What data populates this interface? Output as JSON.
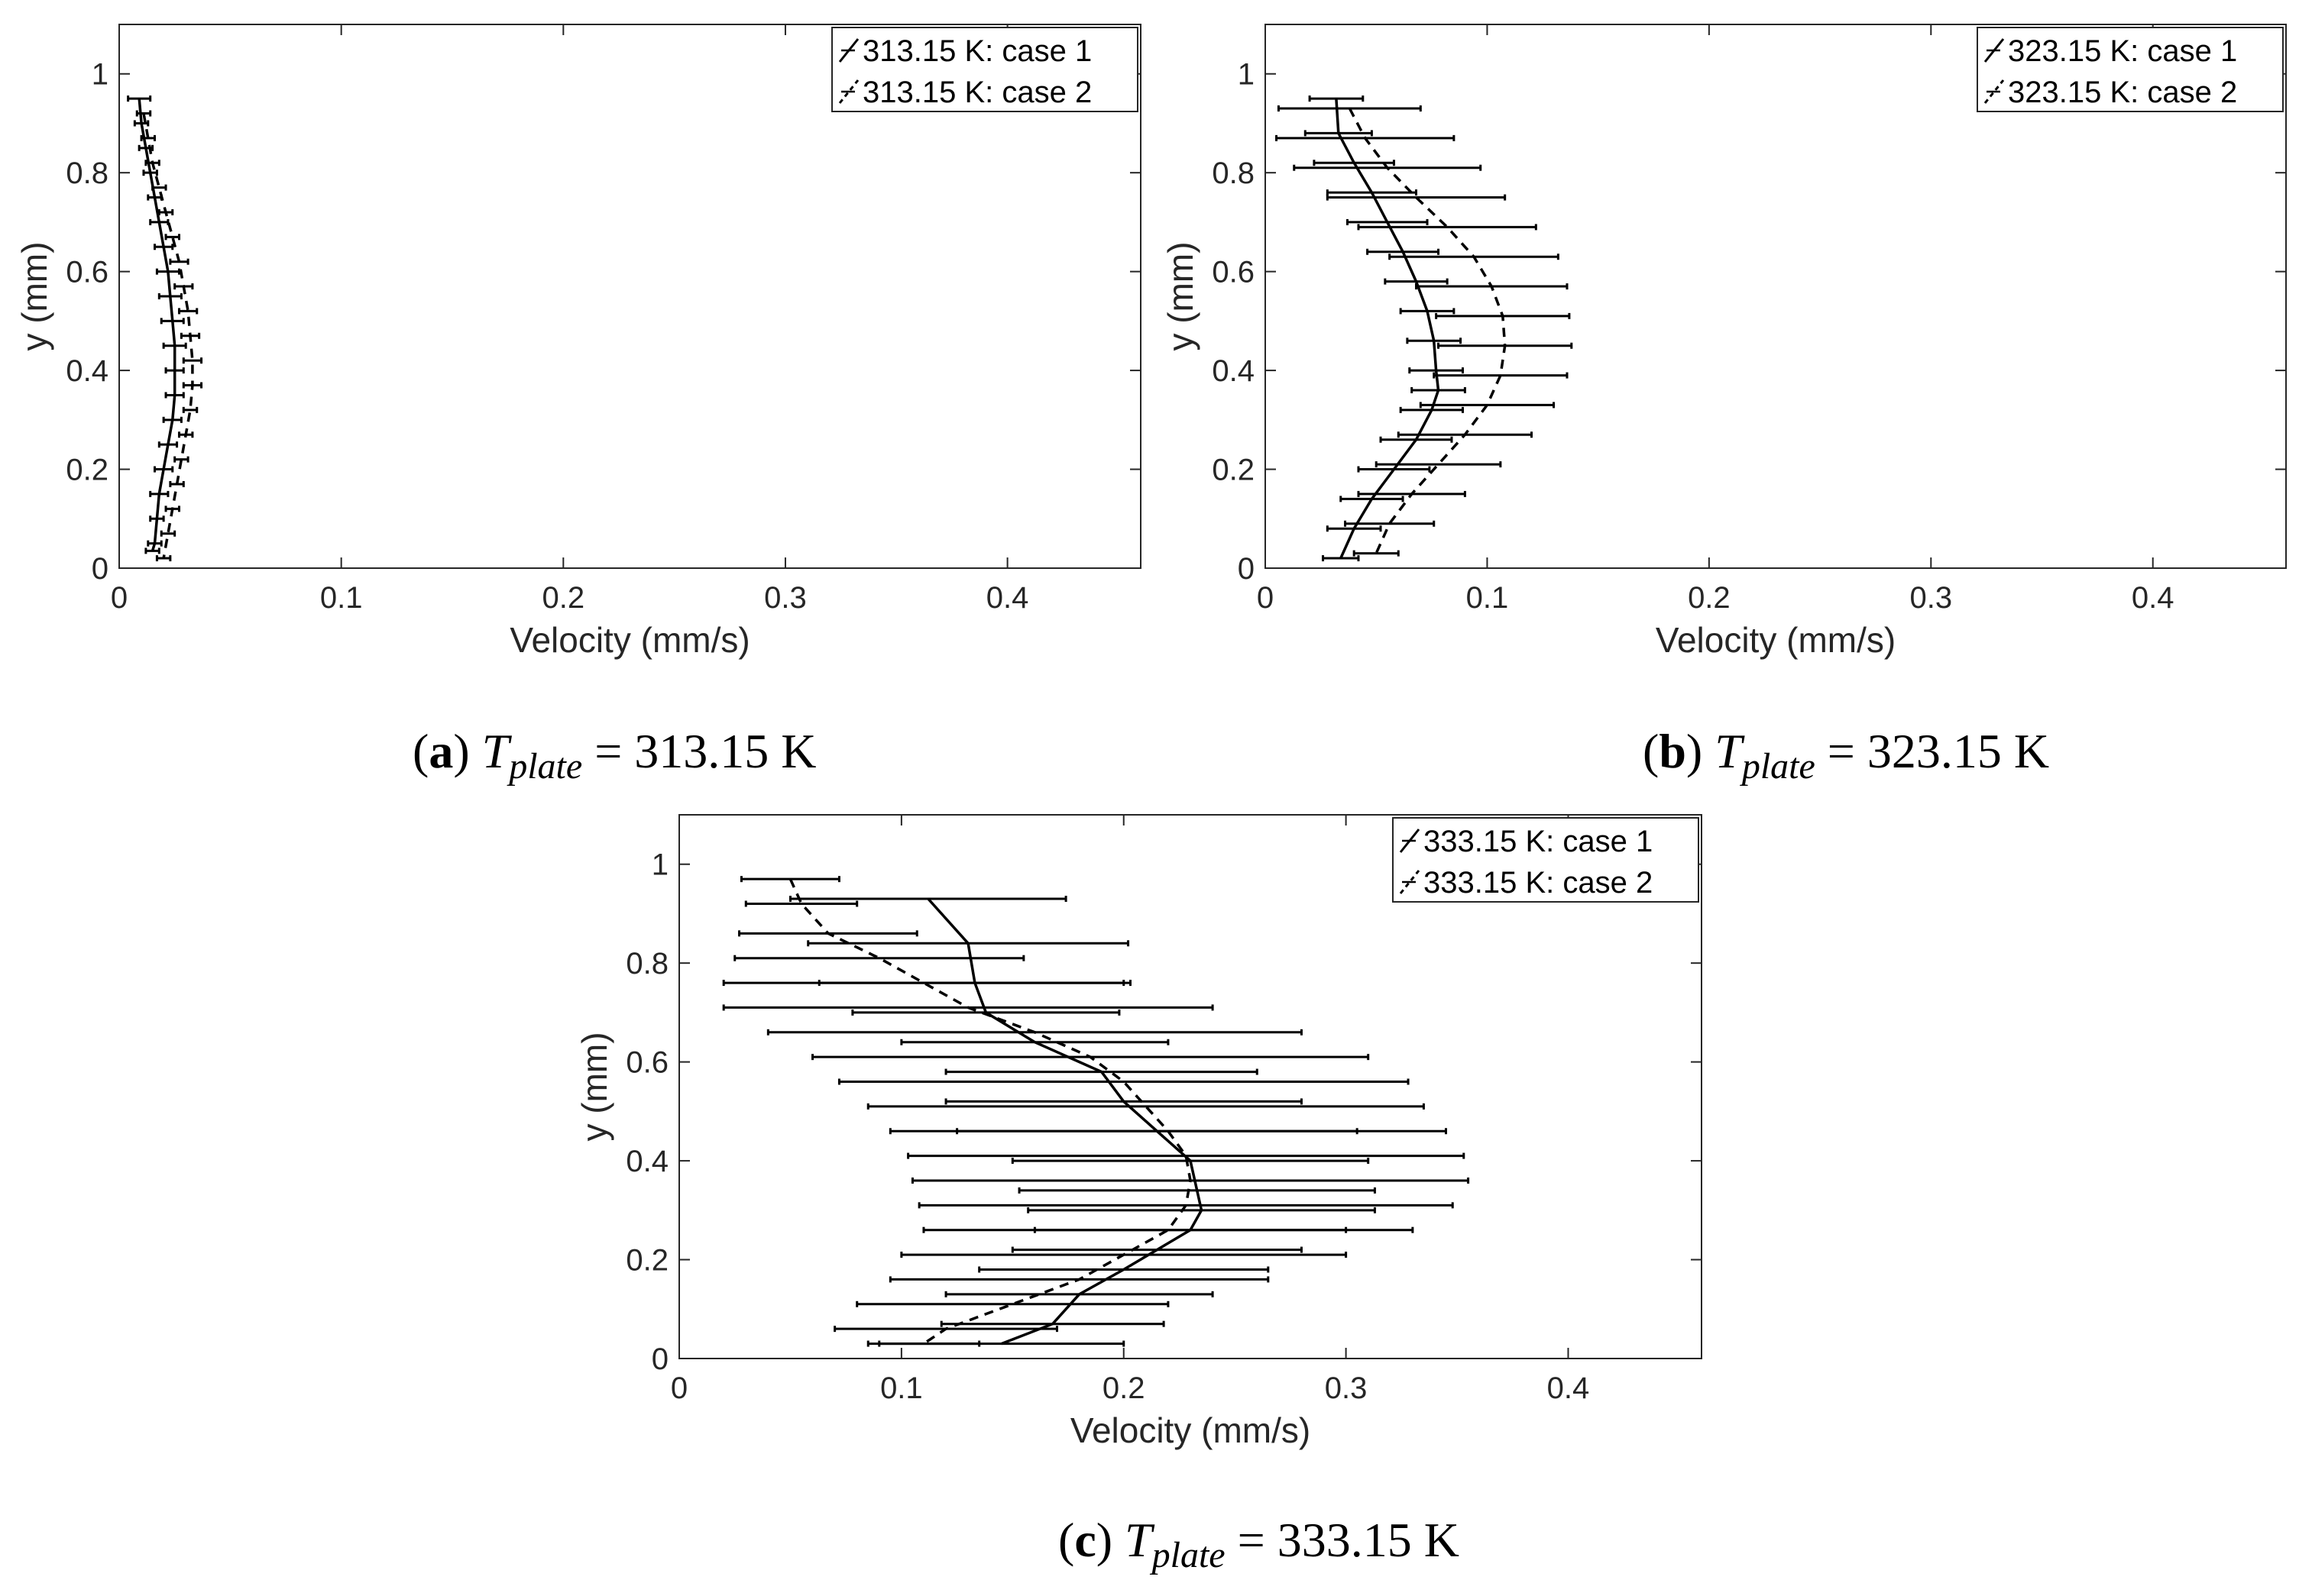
{
  "chart_data": [
    {
      "id": "a",
      "type": "line",
      "caption": {
        "letter": "a",
        "var": "T",
        "sub": "plate",
        "rest": " = 313.15 K"
      },
      "xlabel": "Velocity (mm/s)",
      "ylabel": "y (mm)",
      "xlim": [
        0,
        0.46
      ],
      "ylim": [
        0,
        1.1
      ],
      "xticks": [
        0,
        0.1,
        0.2,
        0.3,
        0.4
      ],
      "xtick_labels": [
        "0",
        "0.1",
        "0.2",
        "0.3",
        "0.4"
      ],
      "yticks": [
        0,
        0.2,
        0.4,
        0.6,
        0.8,
        1
      ],
      "ytick_labels": [
        "0",
        "0.2",
        "0.4",
        "0.6",
        "0.8",
        "1"
      ],
      "legend_position": "top-right",
      "series": [
        {
          "name": "313.15 K: case 1",
          "style": "solid",
          "y": [
            0.95,
            0.9,
            0.85,
            0.8,
            0.75,
            0.7,
            0.65,
            0.6,
            0.55,
            0.5,
            0.45,
            0.4,
            0.35,
            0.3,
            0.25,
            0.2,
            0.15,
            0.1,
            0.05,
            0.035
          ],
          "x": [
            0.009,
            0.01,
            0.012,
            0.014,
            0.016,
            0.018,
            0.02,
            0.022,
            0.023,
            0.024,
            0.025,
            0.025,
            0.025,
            0.024,
            0.022,
            0.02,
            0.018,
            0.017,
            0.016,
            0.015
          ],
          "err": [
            0.005,
            0.003,
            0.003,
            0.003,
            0.003,
            0.004,
            0.004,
            0.005,
            0.005,
            0.005,
            0.005,
            0.004,
            0.004,
            0.004,
            0.004,
            0.004,
            0.004,
            0.003,
            0.003,
            0.003
          ]
        },
        {
          "name": "313.15 K: case 2",
          "style": "dashed",
          "y": [
            0.92,
            0.87,
            0.82,
            0.77,
            0.72,
            0.67,
            0.62,
            0.57,
            0.52,
            0.47,
            0.42,
            0.37,
            0.32,
            0.27,
            0.22,
            0.17,
            0.12,
            0.07,
            0.02
          ],
          "x": [
            0.011,
            0.013,
            0.015,
            0.018,
            0.021,
            0.024,
            0.027,
            0.029,
            0.031,
            0.032,
            0.033,
            0.033,
            0.032,
            0.03,
            0.028,
            0.026,
            0.024,
            0.022,
            0.02
          ],
          "err": [
            0.003,
            0.003,
            0.003,
            0.003,
            0.003,
            0.003,
            0.004,
            0.004,
            0.004,
            0.004,
            0.004,
            0.004,
            0.003,
            0.003,
            0.003,
            0.003,
            0.003,
            0.003,
            0.003
          ]
        }
      ]
    },
    {
      "id": "b",
      "type": "line",
      "caption": {
        "letter": "b",
        "var": "T",
        "sub": "plate",
        "rest": " = 323.15 K"
      },
      "xlabel": "Velocity (mm/s)",
      "ylabel": "y (mm)",
      "xlim": [
        0,
        0.46
      ],
      "ylim": [
        0,
        1.1
      ],
      "xticks": [
        0,
        0.1,
        0.2,
        0.3,
        0.4
      ],
      "xtick_labels": [
        "0",
        "0.1",
        "0.2",
        "0.3",
        "0.4"
      ],
      "yticks": [
        0,
        0.2,
        0.4,
        0.6,
        0.8,
        1
      ],
      "ytick_labels": [
        "0",
        "0.2",
        "0.4",
        "0.6",
        "0.8",
        "1"
      ],
      "legend_position": "top-right",
      "series": [
        {
          "name": "323.15 K: case 1",
          "style": "solid",
          "y": [
            0.95,
            0.88,
            0.82,
            0.76,
            0.7,
            0.64,
            0.58,
            0.52,
            0.46,
            0.4,
            0.36,
            0.32,
            0.26,
            0.2,
            0.14,
            0.08,
            0.02
          ],
          "x": [
            0.032,
            0.033,
            0.04,
            0.048,
            0.055,
            0.062,
            0.068,
            0.073,
            0.076,
            0.077,
            0.078,
            0.075,
            0.068,
            0.058,
            0.048,
            0.04,
            0.034
          ],
          "err": [
            0.012,
            0.015,
            0.018,
            0.02,
            0.018,
            0.016,
            0.014,
            0.012,
            0.012,
            0.012,
            0.012,
            0.014,
            0.016,
            0.016,
            0.014,
            0.012,
            0.008
          ]
        },
        {
          "name": "323.15 K: case 2",
          "style": "dashed",
          "y": [
            0.93,
            0.87,
            0.81,
            0.75,
            0.69,
            0.63,
            0.57,
            0.51,
            0.45,
            0.39,
            0.33,
            0.27,
            0.21,
            0.15,
            0.09,
            0.03
          ],
          "x": [
            0.038,
            0.045,
            0.055,
            0.068,
            0.082,
            0.094,
            0.102,
            0.107,
            0.108,
            0.106,
            0.1,
            0.09,
            0.078,
            0.066,
            0.056,
            0.05
          ],
          "err": [
            0.032,
            0.04,
            0.042,
            0.04,
            0.04,
            0.038,
            0.034,
            0.03,
            0.03,
            0.03,
            0.03,
            0.03,
            0.028,
            0.024,
            0.02,
            0.01
          ]
        }
      ]
    },
    {
      "id": "c",
      "type": "line",
      "caption": {
        "letter": "c",
        "var": "T",
        "sub": "plate",
        "rest": " = 333.15 K"
      },
      "xlabel": "Velocity (mm/s)",
      "ylabel": "y (mm)",
      "xlim": [
        0,
        0.46
      ],
      "ylim": [
        0,
        1.1
      ],
      "xticks": [
        0,
        0.1,
        0.2,
        0.3,
        0.4
      ],
      "xtick_labels": [
        "0",
        "0.1",
        "0.2",
        "0.3",
        "0.4"
      ],
      "yticks": [
        0,
        0.2,
        0.4,
        0.6,
        0.8,
        1
      ],
      "ytick_labels": [
        "0",
        "0.2",
        "0.4",
        "0.6",
        "0.8",
        "1"
      ],
      "legend_position": "top-right",
      "series": [
        {
          "name": "333.15 K: case 1",
          "style": "solid",
          "y": [
            0.93,
            0.84,
            0.76,
            0.7,
            0.64,
            0.58,
            0.52,
            0.46,
            0.4,
            0.34,
            0.3,
            0.26,
            0.22,
            0.18,
            0.13,
            0.07,
            0.03
          ],
          "x": [
            0.112,
            0.13,
            0.133,
            0.138,
            0.16,
            0.19,
            0.2,
            0.215,
            0.23,
            0.233,
            0.235,
            0.23,
            0.215,
            0.2,
            0.18,
            0.168,
            0.145
          ],
          "err": [
            0.062,
            0.072,
            0.07,
            0.06,
            0.06,
            0.07,
            0.08,
            0.09,
            0.08,
            0.08,
            0.078,
            0.07,
            0.065,
            0.065,
            0.06,
            0.05,
            0.055
          ]
        },
        {
          "name": "333.15 K: case 2",
          "style": "dashed",
          "y": [
            0.97,
            0.92,
            0.86,
            0.81,
            0.76,
            0.71,
            0.66,
            0.61,
            0.56,
            0.51,
            0.46,
            0.41,
            0.36,
            0.31,
            0.26,
            0.21,
            0.16,
            0.11,
            0.06,
            0.03
          ],
          "x": [
            0.05,
            0.055,
            0.067,
            0.09,
            0.11,
            0.13,
            0.16,
            0.185,
            0.2,
            0.21,
            0.22,
            0.228,
            0.23,
            0.228,
            0.22,
            0.2,
            0.18,
            0.15,
            0.12,
            0.11
          ],
          "err": [
            0.022,
            0.025,
            0.04,
            0.065,
            0.09,
            0.11,
            0.12,
            0.125,
            0.128,
            0.125,
            0.125,
            0.125,
            0.125,
            0.12,
            0.11,
            0.1,
            0.085,
            0.07,
            0.05,
            0.025
          ]
        }
      ]
    }
  ]
}
